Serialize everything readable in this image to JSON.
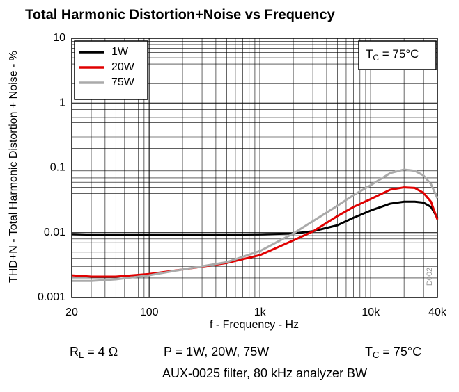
{
  "chart_data": {
    "type": "line",
    "title": "Total Harmonic Distortion+Noise vs Frequency",
    "x_label": "f - Frequency - Hz",
    "y_label": "THD+N - Total Harmonic Distortion + Noise - %",
    "log_x": true,
    "log_y": true,
    "grid": true,
    "legend": "top-left",
    "x": [
      20,
      30,
      50,
      100,
      200,
      500,
      1000,
      2000,
      3000,
      5000,
      7000,
      10000,
      15000,
      20000,
      25000,
      30000,
      35000,
      40000
    ],
    "series": [
      {
        "name": "1W",
        "color": "#000000",
        "values": [
          0.0095,
          0.0093,
          0.0093,
          0.0093,
          0.0093,
          0.0093,
          0.0094,
          0.0097,
          0.0105,
          0.013,
          0.017,
          0.022,
          0.028,
          0.03,
          0.03,
          0.029,
          0.025,
          0.017
        ]
      },
      {
        "name": "20W",
        "color": "#e00000",
        "values": [
          0.0022,
          0.0021,
          0.0021,
          0.0023,
          0.0027,
          0.0034,
          0.0045,
          0.0076,
          0.0104,
          0.018,
          0.025,
          0.033,
          0.046,
          0.05,
          0.049,
          0.041,
          0.03,
          0.016
        ]
      },
      {
        "name": "75W",
        "color": "#aaaaaa",
        "values": [
          0.0018,
          0.0018,
          0.0019,
          0.0022,
          0.0027,
          0.0035,
          0.0052,
          0.0097,
          0.015,
          0.026,
          0.038,
          0.054,
          0.083,
          0.094,
          0.09,
          0.076,
          0.056,
          0.034
        ]
      }
    ],
    "xlim": [
      20,
      40000
    ],
    "ylim": [
      0.001,
      10
    ],
    "xticks": [
      20,
      100,
      {
        "value": 1000,
        "label": "1k"
      },
      {
        "value": 10000,
        "label": "10k"
      },
      {
        "value": 40000,
        "label": "40k"
      }
    ],
    "yticks": [
      0.001,
      0.01,
      0.1,
      1,
      10
    ],
    "temp_box": {
      "base": "T",
      "sub": "C",
      "rest": " = 75°C"
    },
    "code": "D002",
    "conditions": {
      "r_base": "R",
      "r_sub": "L",
      "r_rest": " = 4 Ω",
      "power": "P = 1W, 20W, 75W",
      "t_base": "T",
      "t_sub": "C",
      "t_rest": " = 75°C",
      "filter": "AUX-0025 filter, 80 kHz analyzer BW"
    }
  }
}
